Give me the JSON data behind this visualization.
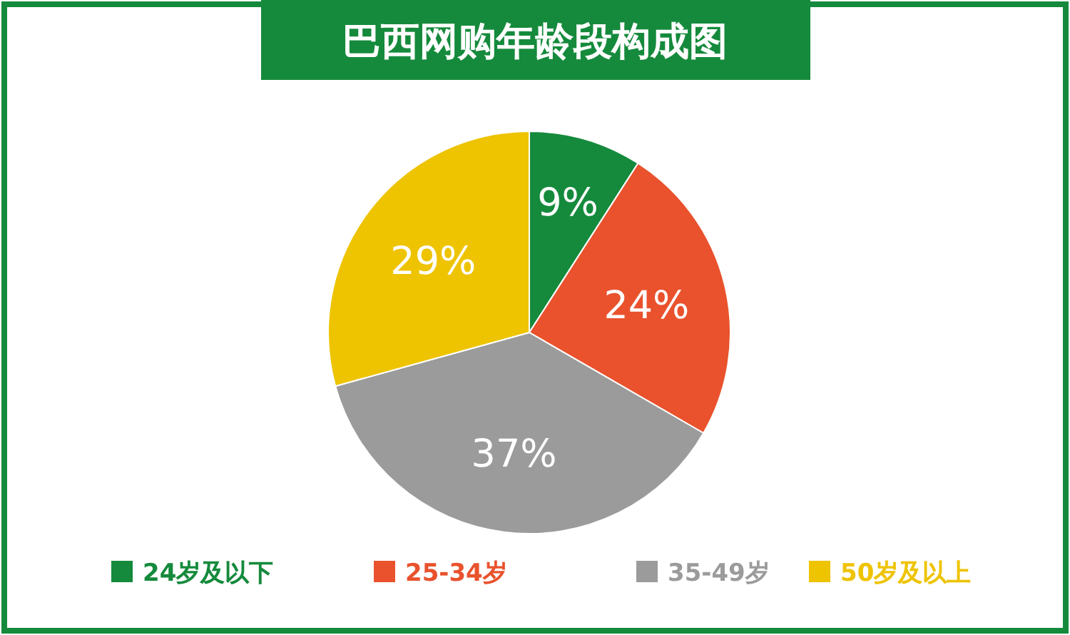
{
  "chart_data": {
    "type": "pie",
    "title": "巴西网购年龄段构成图",
    "categories": [
      "24岁及以下",
      "25-34岁",
      "35-49岁",
      "50岁及以上"
    ],
    "values": [
      9,
      24,
      37,
      29
    ],
    "colors": [
      "#158a3c",
      "#e9522d",
      "#9b9b9b",
      "#eec300"
    ],
    "value_labels": [
      "9%",
      "24%",
      "37%",
      "29%"
    ],
    "legend": "bottom"
  }
}
